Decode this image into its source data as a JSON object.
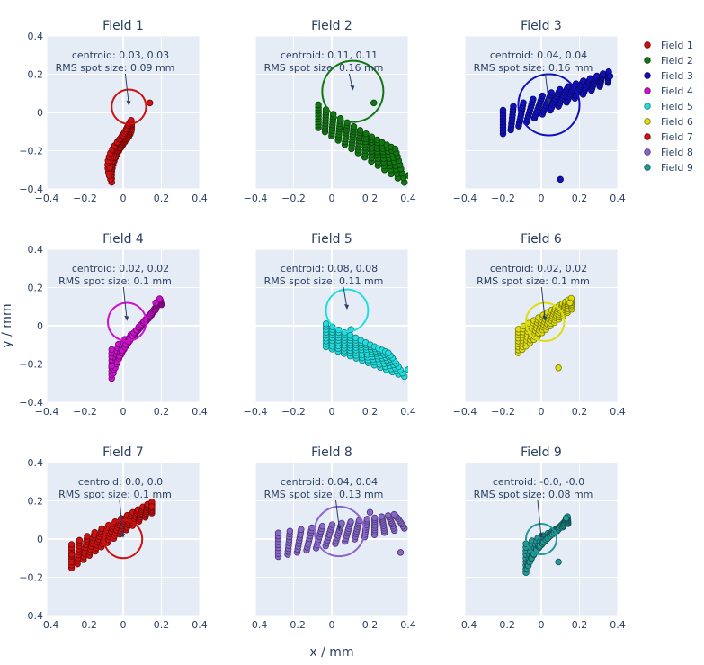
{
  "figure": {
    "xlabel": "x / mm",
    "ylabel": "y / mm"
  },
  "chart_data": {
    "type": "scatter",
    "xlim": [
      -0.4,
      0.4
    ],
    "ylim": [
      -0.4,
      0.4
    ],
    "ticks": [
      -0.4,
      -0.2,
      0,
      0.2,
      0.4
    ],
    "tick_labels": [
      "−0.4",
      "−0.2",
      "0",
      "0.2",
      "0.4"
    ],
    "legend_position": "top-right",
    "grid": true,
    "fields": [
      {
        "title": "Field 1",
        "name": "Field 1",
        "color": "#cc1111",
        "centroid": [
          0.03,
          0.03
        ],
        "rms": 0.09,
        "centroid_label": "centroid: 0.03, 0.03",
        "rms_label": "RMS spot size: 0.09 mm",
        "pattern": {
          "x0": -0.06,
          "y0": -0.29,
          "dx": 0.06,
          "dy": 0.19,
          "rot": 0.78,
          "head": [
            0.14,
            0.05
          ],
          "tail": [
            -0.07,
            -0.29
          ]
        }
      },
      {
        "title": "Field 2",
        "name": "Field 2",
        "color": "#117711",
        "centroid": [
          0.11,
          0.11
        ],
        "rms": 0.16,
        "centroid_label": "centroid: 0.11, 0.11",
        "rms_label": "RMS spot size: 0.16 mm",
        "pattern": {
          "x0": -0.07,
          "y0": -0.02,
          "dx": 0.45,
          "dy": -0.31,
          "rot": 0.0,
          "head": [
            0.22,
            0.05
          ],
          "tail": [
            0.4,
            -0.33
          ]
        }
      },
      {
        "title": "Field 3",
        "name": "Field 3",
        "color": "#1111bb",
        "centroid": [
          0.04,
          0.04
        ],
        "rms": 0.16,
        "centroid_label": "centroid: 0.04, 0.04",
        "rms_label": "RMS spot size: 0.16 mm",
        "pattern": {
          "x0": -0.2,
          "y0": -0.05,
          "dx": 0.55,
          "dy": 0.24,
          "rot": 0.1,
          "head": [
            0.36,
            0.19
          ],
          "tail": [
            0.1,
            -0.35
          ]
        }
      },
      {
        "title": "Field 4",
        "name": "Field 4",
        "color": "#cc11cc",
        "centroid": [
          0.02,
          0.02
        ],
        "rms": 0.1,
        "centroid_label": "centroid: 0.02, 0.02",
        "rms_label": "RMS spot size: 0.1 mm",
        "pattern": {
          "x0": -0.06,
          "y0": -0.2,
          "dx": 0.26,
          "dy": 0.33,
          "rot": 0.78,
          "head": [
            0.17,
            0.12
          ],
          "tail": [
            -0.06,
            -0.21
          ]
        }
      },
      {
        "title": "Field 5",
        "name": "Field 5",
        "color": "#22dddd",
        "centroid": [
          0.08,
          0.08
        ],
        "rms": 0.11,
        "centroid_label": "centroid: 0.08, 0.08",
        "rms_label": "RMS spot size: 0.11 mm",
        "pattern": {
          "x0": -0.03,
          "y0": -0.05,
          "dx": 0.41,
          "dy": -0.18,
          "rot": 0.0,
          "head": [
            0.1,
            -0.02
          ],
          "tail": [
            0.4,
            -0.23
          ]
        }
      },
      {
        "title": "Field 6",
        "name": "Field 6",
        "color": "#dddd11",
        "centroid": [
          0.02,
          0.02
        ],
        "rms": 0.1,
        "centroid_label": "centroid: 0.02, 0.02",
        "rms_label": "RMS spot size: 0.1 mm",
        "pattern": {
          "x0": -0.12,
          "y0": -0.08,
          "dx": 0.28,
          "dy": 0.2,
          "rot": 0.1,
          "head": [
            0.15,
            0.12
          ],
          "tail": [
            0.09,
            -0.22
          ]
        }
      },
      {
        "title": "Field 7",
        "name": "Field 7",
        "color": "#cc1111",
        "centroid": [
          0.0,
          0.0
        ],
        "rms": 0.1,
        "centroid_label": "centroid: 0.0, 0.0",
        "rms_label": "RMS spot size: 0.1 mm",
        "pattern": {
          "x0": -0.27,
          "y0": -0.09,
          "dx": 0.42,
          "dy": 0.26,
          "rot": 0.1,
          "head": [
            0.15,
            0.17
          ],
          "tail": [
            -0.27,
            -0.08
          ]
        }
      },
      {
        "title": "Field 8",
        "name": "Field 8",
        "color": "#8866cc",
        "centroid": [
          0.04,
          0.04
        ],
        "rms": 0.13,
        "centroid_label": "centroid: 0.04, 0.04",
        "rms_label": "RMS spot size: 0.13 mm",
        "pattern": {
          "x0": -0.28,
          "y0": -0.03,
          "dx": 0.66,
          "dy": 0.12,
          "rot": 0.1,
          "head": [
            0.2,
            0.14
          ],
          "tail": [
            0.36,
            -0.07
          ]
        }
      },
      {
        "title": "Field 9",
        "name": "Field 9",
        "color": "#229999",
        "centroid": [
          0.0,
          0.0
        ],
        "rms": 0.08,
        "centroid_label": "centroid: -0.0, -0.0",
        "rms_label": "RMS spot size: 0.08 mm",
        "pattern": {
          "x0": -0.08,
          "y0": -0.1,
          "dx": 0.22,
          "dy": 0.2,
          "rot": 0.78,
          "head": [
            0.13,
            0.11
          ],
          "tail": [
            0.09,
            -0.12
          ]
        }
      }
    ]
  }
}
